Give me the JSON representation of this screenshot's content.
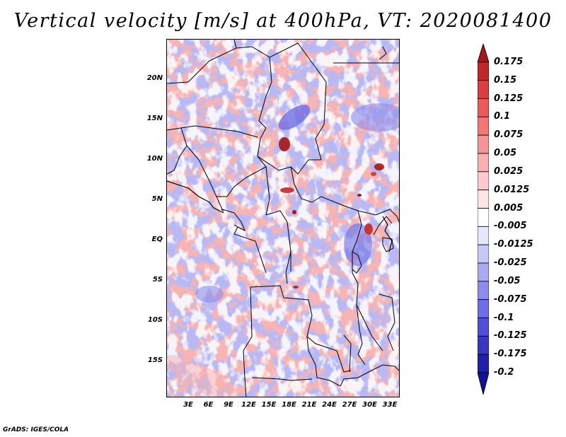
{
  "title": "Vertical velocity [m/s] at 400hPa, VT: 2020081400",
  "footer": "GrADS: IGES/COLA",
  "map": {
    "lon_labels": [
      "3E",
      "6E",
      "9E",
      "12E",
      "15E",
      "18E",
      "21E",
      "24E",
      "27E",
      "30E",
      "33E"
    ],
    "lat_labels": [
      "20N",
      "15N",
      "10N",
      "5N",
      "EQ",
      "5S",
      "10S",
      "15S"
    ]
  },
  "colorbar": {
    "labels": [
      "0.175",
      "0.15",
      "0.125",
      "0.1",
      "0.075",
      "0.05",
      "0.025",
      "0.0125",
      "0.005",
      "-0.005",
      "-0.0125",
      "-0.025",
      "-0.05",
      "-0.075",
      "-0.1",
      "-0.125",
      "-0.175",
      "-0.2"
    ],
    "colors": [
      "#a01818",
      "#be2a2a",
      "#d64040",
      "#e85c5c",
      "#f07878",
      "#f49494",
      "#f8b0b0",
      "#fccccc",
      "#fee6e6",
      "#ffffff",
      "#e6e6fe",
      "#c8c8f8",
      "#aaaaf2",
      "#8c8cec",
      "#6e6ee6",
      "#5050d6",
      "#3838c0",
      "#2020a8",
      "#141490"
    ]
  },
  "chart_data": {
    "type": "heatmap",
    "title": "Vertical velocity [m/s] at 400hPa, VT: 2020081400",
    "variable": "Vertical velocity",
    "units": "m/s",
    "level": "400hPa",
    "valid_time": "2020081400",
    "lon_range": [
      0,
      35
    ],
    "lat_range": [
      -20,
      25
    ],
    "levels": [
      -0.2,
      -0.175,
      -0.125,
      -0.1,
      -0.075,
      -0.05,
      -0.025,
      -0.0125,
      -0.005,
      0.005,
      0.0125,
      0.025,
      0.05,
      0.075,
      0.1,
      0.125,
      0.15,
      0.175
    ]
  }
}
